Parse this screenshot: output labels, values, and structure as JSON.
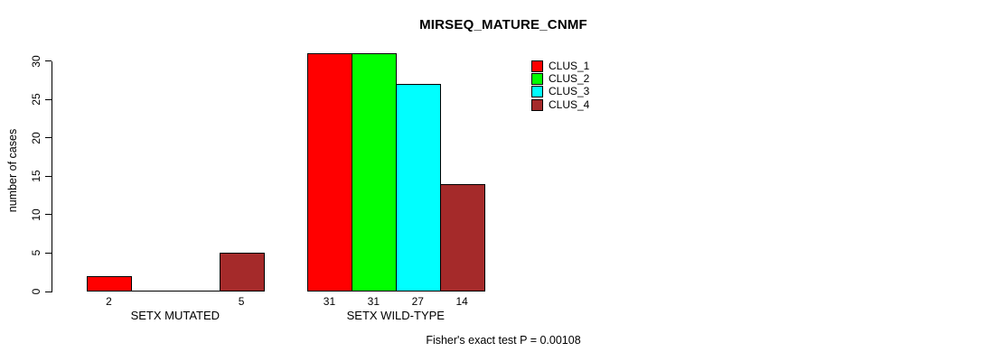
{
  "chart_data": {
    "type": "bar",
    "title": "MIRSEQ_MATURE_CNMF",
    "ylabel": "number of cases",
    "xlabel": "",
    "annotation": "Fisher's exact test P = 0.00108",
    "groups": [
      "SETX MUTATED",
      "SETX WILD-TYPE"
    ],
    "series": [
      {
        "name": "CLUS_1",
        "color": "#ff0000",
        "values": [
          2,
          31
        ]
      },
      {
        "name": "CLUS_2",
        "color": "#00ff00",
        "values": [
          0,
          31
        ]
      },
      {
        "name": "CLUS_3",
        "color": "#00ffff",
        "values": [
          0,
          27
        ]
      },
      {
        "name": "CLUS_4",
        "color": "#a52a2a",
        "values": [
          5,
          14
        ]
      }
    ],
    "y_ticks": [
      0,
      5,
      10,
      15,
      20,
      25,
      30
    ],
    "ylim": [
      0,
      30
    ],
    "grid": false,
    "legend_position": "top-right",
    "visible_bar_value_labels": [
      "2",
      "5",
      "31",
      "31",
      "27",
      "14"
    ]
  }
}
